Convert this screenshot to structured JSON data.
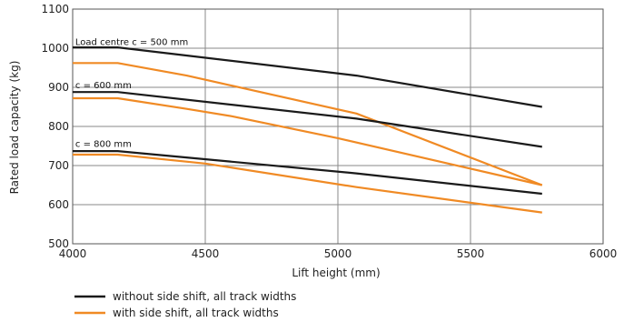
{
  "chart_data": {
    "type": "line",
    "title": "",
    "xlabel": "Lift height (mm)",
    "ylabel": "Rated load capacity (kg)",
    "xlim": [
      4000,
      6000
    ],
    "ylim": [
      500,
      1100
    ],
    "x_ticks": [
      4000,
      4500,
      5000,
      5500,
      6000
    ],
    "y_ticks": [
      500,
      600,
      700,
      800,
      900,
      1000,
      1100
    ],
    "grid": true,
    "legend_placement": "bottom-left",
    "colors": {
      "without": "#1a1a1a",
      "with": "#f08a24"
    },
    "legend": [
      {
        "label": "without side shift, all track widths",
        "group": "without"
      },
      {
        "label": "with side shift, all track widths",
        "group": "with"
      }
    ],
    "annotations": [
      {
        "text": "Load centre c = 500 mm",
        "x": 4010,
        "y": 1008
      },
      {
        "text": "c = 600 mm",
        "x": 4010,
        "y": 898
      },
      {
        "text": "c = 800 mm",
        "x": 4010,
        "y": 748
      }
    ],
    "series": [
      {
        "group": "without",
        "points": [
          [
            4000,
            1002
          ],
          [
            4170,
            1002
          ],
          [
            5070,
            930
          ],
          [
            5770,
            850
          ]
        ]
      },
      {
        "group": "with",
        "points": [
          [
            4000,
            962
          ],
          [
            4170,
            962
          ],
          [
            4430,
            930
          ],
          [
            5070,
            833
          ],
          [
            5770,
            650
          ]
        ]
      },
      {
        "group": "without",
        "points": [
          [
            4000,
            888
          ],
          [
            4170,
            888
          ],
          [
            5070,
            820
          ],
          [
            5770,
            748
          ]
        ]
      },
      {
        "group": "with",
        "points": [
          [
            4000,
            872
          ],
          [
            4170,
            872
          ],
          [
            4430,
            845
          ],
          [
            4600,
            826
          ],
          [
            5000,
            770
          ],
          [
            5770,
            650
          ]
        ]
      },
      {
        "group": "without",
        "points": [
          [
            4000,
            737
          ],
          [
            4170,
            737
          ],
          [
            5070,
            680
          ],
          [
            5770,
            628
          ]
        ]
      },
      {
        "group": "with",
        "points": [
          [
            4000,
            728
          ],
          [
            4170,
            728
          ],
          [
            4500,
            705
          ],
          [
            5070,
            645
          ],
          [
            5770,
            580
          ]
        ]
      }
    ]
  }
}
